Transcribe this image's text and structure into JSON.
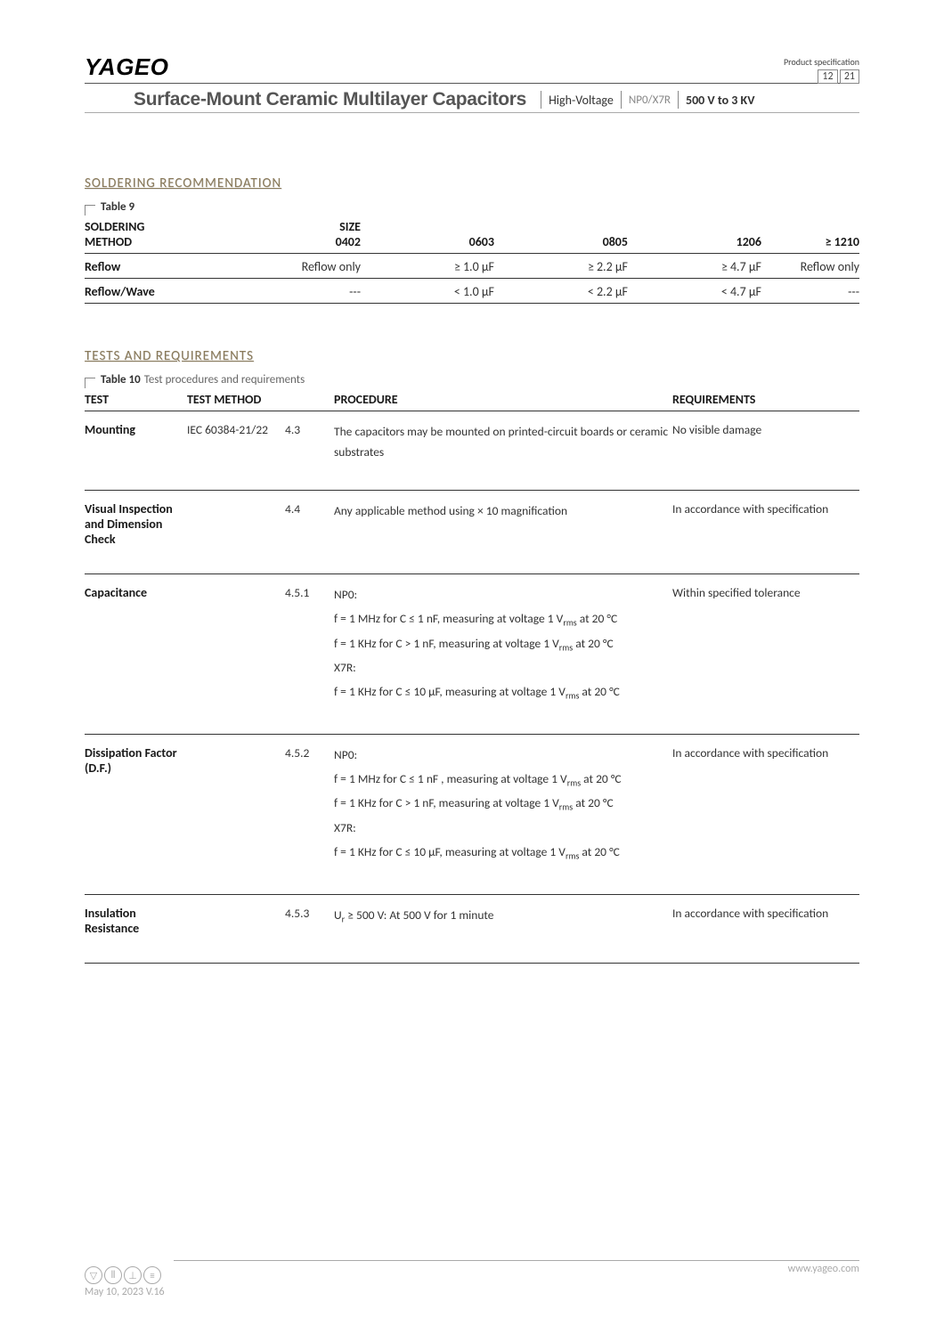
{
  "header": {
    "logo": "YAGEO",
    "title": "Surface-Mount Ceramic Multilayer Capacitors",
    "tag1": "High-Voltage",
    "tag2": "NP0/X7R",
    "tag3": "500 V to 3 KV",
    "spec_label": "Product specification",
    "page_num": "12",
    "page_total": "21"
  },
  "section1_heading": "SOLDERING RECOMMENDATION",
  "table9": {
    "label": "Table 9",
    "col1_l1": "SOLDERING",
    "col1_l2": "METHOD",
    "size_label": "SIZE",
    "sizes": [
      "0402",
      "0603",
      "0805",
      "1206",
      "≥ 1210"
    ],
    "rows": [
      {
        "name": "Reflow",
        "cells": [
          "Reflow only",
          "≥ 1.0 µF",
          "≥ 2.2 µF",
          "≥ 4.7 µF",
          "Reflow only"
        ]
      },
      {
        "name": "Reflow/Wave",
        "cells": [
          "---",
          "< 1.0 µF",
          "< 2.2 µF",
          "< 4.7 µF",
          "---"
        ]
      }
    ]
  },
  "section2_heading": "TESTS AND REQUIREMENTS",
  "table10": {
    "label": "Table 10",
    "desc": "Test procedures and requirements",
    "head": {
      "c1": "TEST",
      "c2": "TEST METHOD",
      "c3": "PROCEDURE",
      "c4": "REQUIREMENTS"
    },
    "rows": [
      {
        "test": "Mounting",
        "method": "IEC 60384-21/22",
        "sec": "4.3",
        "proc_plain": "The capacitors may be mounted on printed-circuit boards or ceramic substrates",
        "req": "No visible damage"
      },
      {
        "test": "Visual Inspection and Dimension Check",
        "method": "",
        "sec": "4.4",
        "proc_plain": "Any applicable method using × 10 magnification",
        "req": "In accordance with specification"
      },
      {
        "test": "Capacitance",
        "method": "",
        "sec": "4.5.1",
        "proc_lines": [
          {
            "text": "NP0:"
          },
          {
            "text_html": "f = 1 MHz for C ≤ 1 nF, measuring at voltage 1 V<sub class='rms'>rms</sub> at 20 °C"
          },
          {
            "text_html": "f = 1 KHz for C > 1 nF, measuring at voltage 1 V<sub class='rms'>rms</sub> at 20 °C"
          },
          {
            "text": "X7R:"
          },
          {
            "text_html": "f = 1 KHz for C ≤ 10 µF, measuring at voltage 1 V<sub class='rms'>rms</sub> at 20 °C"
          }
        ],
        "req": "Within specified tolerance"
      },
      {
        "test": "Dissipation Factor (D.F.)",
        "method": "",
        "sec": "4.5.2",
        "proc_lines": [
          {
            "text": "NP0:"
          },
          {
            "text_html": "f = 1 MHz for C ≤ 1 nF , measuring at voltage 1 V<sub class='rms'>rms</sub> at 20 °C"
          },
          {
            "text_html": "f = 1 KHz for C > 1 nF, measuring at voltage 1 V<sub class='rms'>rms</sub> at 20 °C"
          },
          {
            "text": "X7R:"
          },
          {
            "text_html": "f = 1 KHz for C ≤ 10 µF, measuring at voltage 1 V<sub class='rms'>rms</sub> at 20 °C"
          }
        ],
        "req": "In accordance with specification"
      },
      {
        "test": "Insulation Resistance",
        "method": "",
        "sec": "4.5.3",
        "proc_html": "U<sub class='rms'>r</sub> ≥ 500 V: At 500 V for 1 minute",
        "req": "In accordance with specification"
      }
    ]
  },
  "footer": {
    "date": "May 10, 2023  V.16",
    "url": "www.yageo.com"
  }
}
